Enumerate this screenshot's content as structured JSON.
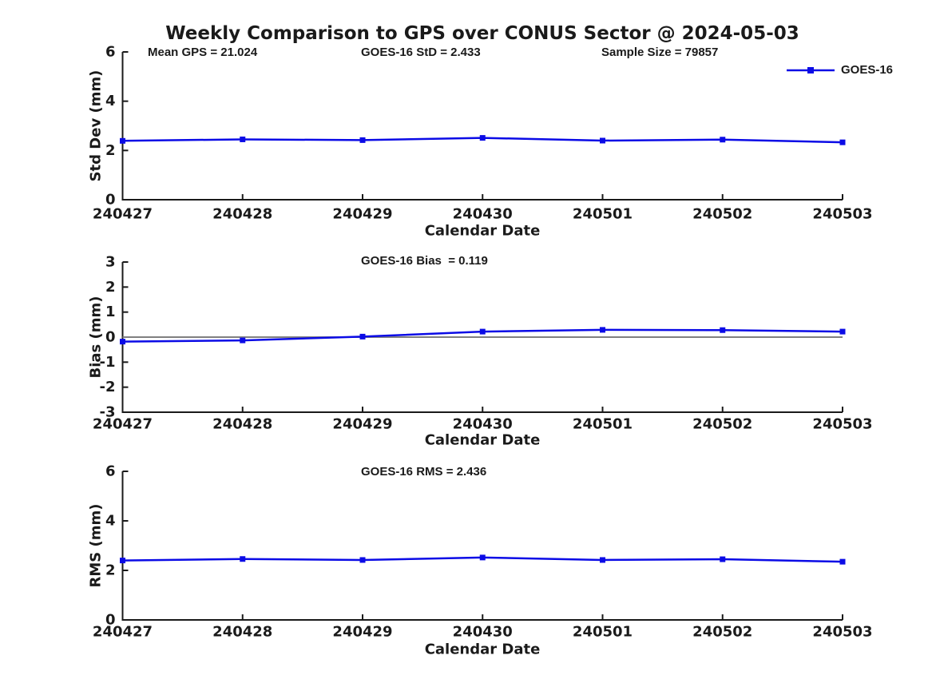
{
  "figure": {
    "title": "Weekly Comparison to GPS over CONUS Sector @ 2024-05-03"
  },
  "colors": {
    "series_blue": "#0b0be6",
    "axis": "#1a1a1a",
    "zero_line": "#808080",
    "background": "#ffffff"
  },
  "legend": {
    "label": "GOES-16"
  },
  "chart_data": [
    {
      "type": "line",
      "panel": "std-dev",
      "title": "",
      "xlabel": "Calendar Date",
      "ylabel": "Std Dev (mm)",
      "ylim": [
        0,
        6
      ],
      "yticks": [
        0,
        2,
        4,
        6
      ],
      "grid": false,
      "legend_position": "top-right-outside",
      "categories": [
        "240427",
        "240428",
        "240429",
        "240430",
        "240501",
        "240502",
        "240503"
      ],
      "series": [
        {
          "name": "GOES-16",
          "color": "#0b0be6",
          "marker": "square",
          "values": [
            2.39,
            2.45,
            2.42,
            2.51,
            2.4,
            2.44,
            2.33
          ]
        }
      ],
      "annotations": [
        "Mean GPS = 21.024",
        "GOES-16 StD = 2.433",
        "Sample Size = 79857"
      ]
    },
    {
      "type": "line",
      "panel": "bias",
      "title": "",
      "xlabel": "Calendar Date",
      "ylabel": "Bias (mm)",
      "ylim": [
        -3,
        3
      ],
      "yticks": [
        -3,
        -2,
        -1,
        0,
        1,
        2,
        3
      ],
      "grid": false,
      "zero_line": true,
      "categories": [
        "240427",
        "240428",
        "240429",
        "240430",
        "240501",
        "240502",
        "240503"
      ],
      "series": [
        {
          "name": "GOES-16",
          "color": "#0b0be6",
          "marker": "square",
          "values": [
            -0.18,
            -0.13,
            0.02,
            0.22,
            0.29,
            0.28,
            0.22
          ]
        }
      ],
      "annotations": [
        "GOES-16 Bias  = 0.119"
      ]
    },
    {
      "type": "line",
      "panel": "rms",
      "title": "",
      "xlabel": "Calendar Date",
      "ylabel": "RMS (mm)",
      "ylim": [
        0,
        6
      ],
      "yticks": [
        0,
        2,
        4,
        6
      ],
      "grid": false,
      "categories": [
        "240427",
        "240428",
        "240429",
        "240430",
        "240501",
        "240502",
        "240503"
      ],
      "series": [
        {
          "name": "GOES-16",
          "color": "#0b0be6",
          "marker": "square",
          "values": [
            2.4,
            2.46,
            2.42,
            2.52,
            2.42,
            2.45,
            2.35
          ]
        }
      ],
      "annotations": [
        "GOES-16 RMS = 2.436"
      ]
    }
  ]
}
